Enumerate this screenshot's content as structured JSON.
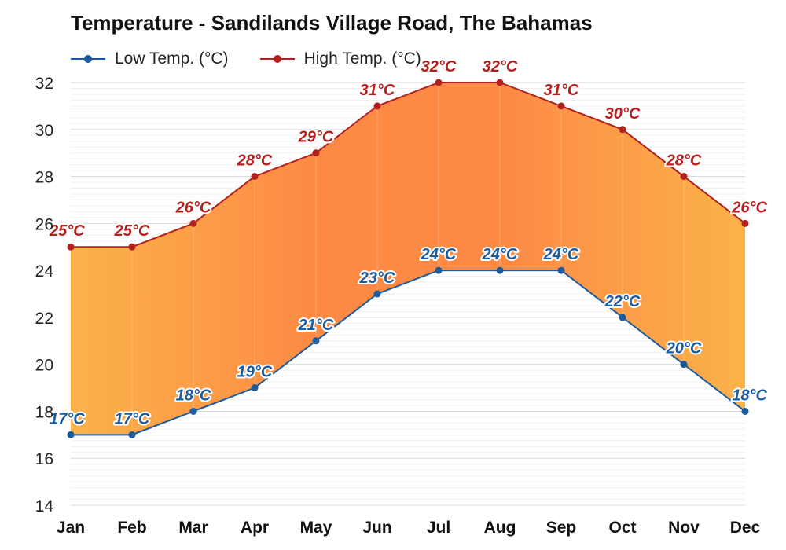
{
  "chart_data": {
    "type": "area",
    "title": "Temperature - Sandilands Village Road, The Bahamas",
    "xlabel": "",
    "ylabel": "",
    "categories": [
      "Jan",
      "Feb",
      "Mar",
      "Apr",
      "May",
      "Jun",
      "Jul",
      "Aug",
      "Sep",
      "Oct",
      "Nov",
      "Dec"
    ],
    "ylim": [
      14,
      32
    ],
    "yticks": [
      14,
      16,
      18,
      20,
      22,
      24,
      26,
      28,
      30,
      32
    ],
    "grid": true,
    "legend_position": "top-left",
    "unit": "°C",
    "series": [
      {
        "name": "Low Temp. (°C)",
        "color": "#1b5b9e",
        "values": [
          17,
          17,
          18,
          19,
          21,
          23,
          24,
          24,
          24,
          22,
          20,
          18
        ]
      },
      {
        "name": "High Temp. (°C)",
        "color": "#b3201d",
        "values": [
          25,
          25,
          26,
          28,
          29,
          31,
          32,
          32,
          31,
          30,
          28,
          26
        ]
      }
    ],
    "fill_colors": {
      "mild": "#fbb24a",
      "hot": "#fc8a45"
    }
  }
}
